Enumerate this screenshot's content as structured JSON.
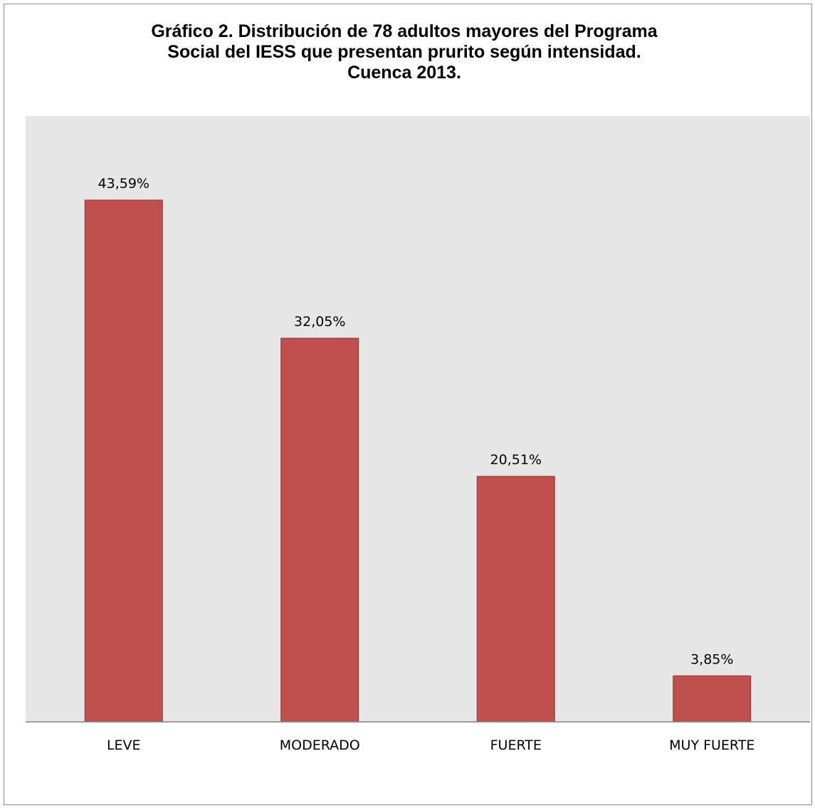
{
  "chart_data": {
    "type": "bar",
    "title_lines": [
      "Gráfico 2. Distribución de 78 adultos mayores del Programa",
      "Social del IESS que presentan prurito según intensidad.",
      "Cuenca 2013."
    ],
    "categories": [
      "LEVE",
      "MODERADO",
      "FUERTE",
      "MUY FUERTE"
    ],
    "values": [
      43.59,
      32.05,
      20.51,
      3.85
    ],
    "value_labels": [
      "43,59%",
      "32,05%",
      "20,51%",
      "3,85%"
    ],
    "ylim": [
      0,
      50
    ],
    "grid": false,
    "legend": "none",
    "colors": {
      "bar": "#c0504d",
      "bar_border": "#8c3836",
      "plot_area": "#e6e6e6",
      "axis": "#808080"
    }
  }
}
